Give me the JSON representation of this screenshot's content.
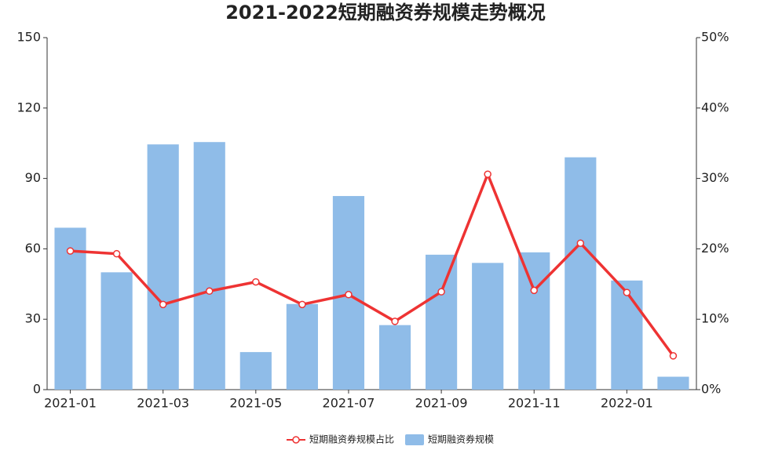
{
  "chart_data": {
    "type": "bar",
    "title": "2021-2022短期融资券规模走势概况",
    "categories": [
      "2021-01",
      null,
      "2021-03",
      null,
      "2021-05",
      null,
      "2021-07",
      null,
      "2021-09",
      null,
      "2021-11",
      null,
      "2022-01",
      null
    ],
    "series": [
      {
        "name": "短期融资券规模占比",
        "type": "line",
        "axis": "y2",
        "color": "#ee3333",
        "values": [
          19.7,
          19.3,
          12.1,
          14.0,
          15.3,
          12.1,
          13.5,
          9.7,
          13.9,
          30.6,
          14.1,
          20.8,
          13.8,
          4.8
        ]
      },
      {
        "name": "短期融资券规模",
        "type": "bar",
        "color": "#8fbce8",
        "values": [
          69,
          50,
          104.5,
          105.5,
          16,
          36.5,
          82.5,
          27.5,
          57.5,
          54,
          58.5,
          99,
          46.5,
          5.5
        ]
      }
    ],
    "ylim": [
      0,
      150
    ],
    "yticks": [
      0,
      30,
      60,
      90,
      120,
      150
    ],
    "y2lim": [
      0,
      50
    ],
    "y2ticks": [
      {
        "value": 0,
        "label": "0%"
      },
      {
        "value": 10,
        "label": "10%"
      },
      {
        "value": 20,
        "label": "20%"
      },
      {
        "value": 30,
        "label": "30%"
      },
      {
        "value": 40,
        "label": "40%"
      },
      {
        "value": 50,
        "label": "50%"
      }
    ],
    "legend": "bottom"
  }
}
